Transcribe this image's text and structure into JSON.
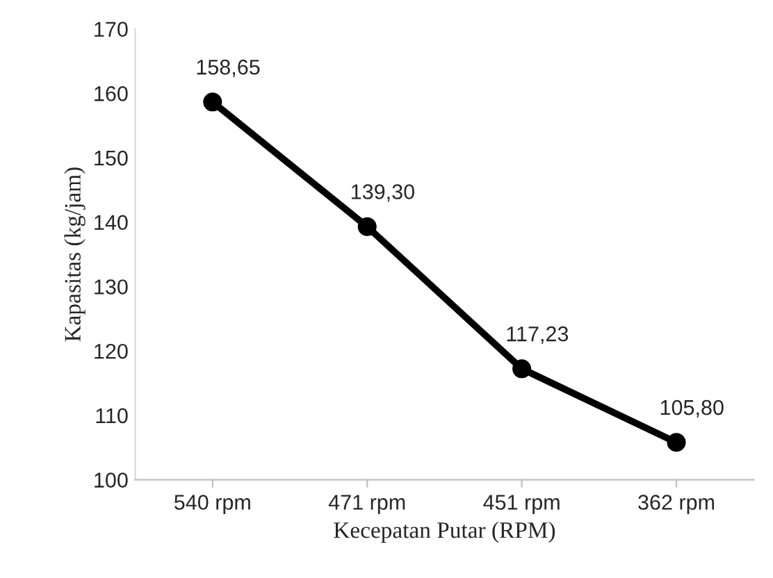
{
  "chart_data": {
    "type": "line",
    "xlabel": "Kecepatan Putar (RPM)",
    "ylabel": "Kapasitas (kg/jam)",
    "categories": [
      "540 rpm",
      "471 rpm",
      "451 rpm",
      "362 rpm"
    ],
    "series": [
      {
        "color": "#000000",
        "values": [
          158.65,
          139.3,
          117.23,
          105.8
        ],
        "value_labels": [
          "158,65",
          "139,30",
          "117,23",
          "105,80"
        ]
      }
    ],
    "ylim": [
      100,
      170
    ],
    "yticks": [
      100,
      110,
      120,
      130,
      140,
      150,
      160,
      170
    ],
    "marker": "circle",
    "line_style": "solid",
    "grid": false,
    "legend": false
  }
}
